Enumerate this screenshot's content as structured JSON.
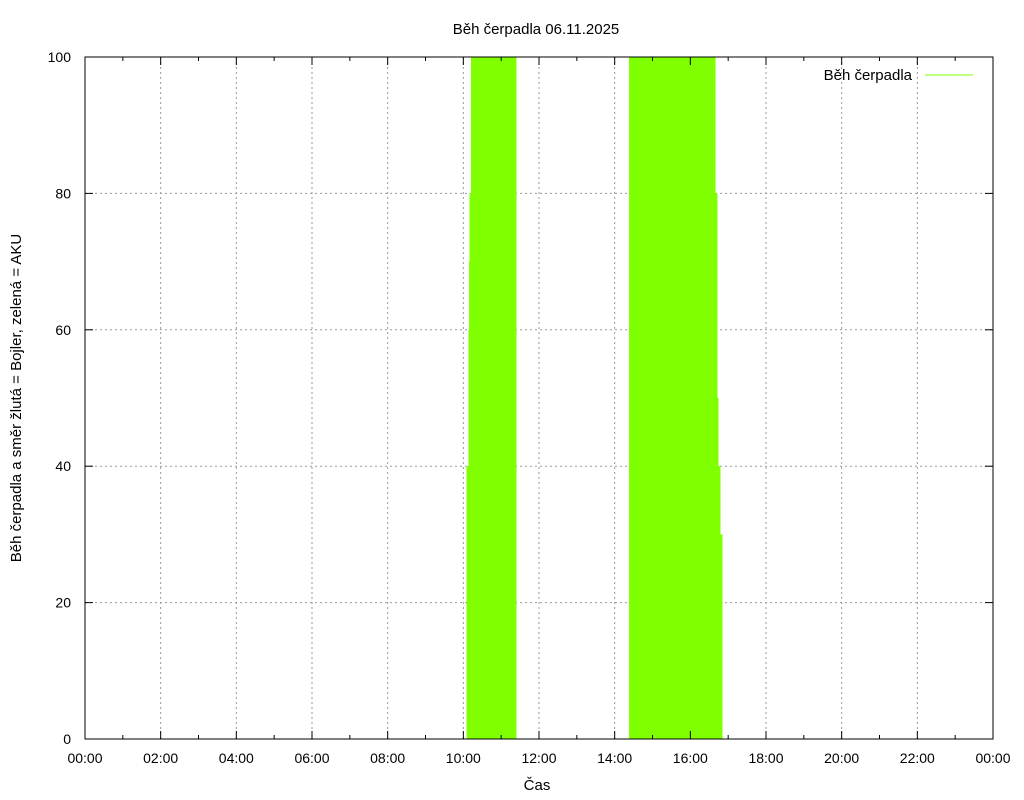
{
  "chart_data": {
    "type": "area",
    "title": "Běh čerpadla 06.11.2025",
    "xlabel": "Čas",
    "ylabel": "Běh čerpadla a směr žlutá = Bojler, zelená = AKU",
    "xlim": [
      0,
      1440
    ],
    "ylim": [
      0,
      100
    ],
    "grid": true,
    "legend_position": "top-right",
    "x_tick_labels": [
      "00:00",
      "02:00",
      "04:00",
      "06:00",
      "08:00",
      "10:00",
      "12:00",
      "14:00",
      "16:00",
      "18:00",
      "20:00",
      "22:00",
      "00:00"
    ],
    "y_tick_labels": [
      "0",
      "20",
      "40",
      "60",
      "80",
      "100"
    ],
    "series": [
      {
        "name": "Běh čerpadla",
        "color": "#80ff00",
        "x_units": "minutes since 00:00",
        "blocks": [
          {
            "start": 605,
            "end": 608,
            "value": 40
          },
          {
            "start": 608,
            "end": 609,
            "value": 60
          },
          {
            "start": 609,
            "end": 610,
            "value": 70
          },
          {
            "start": 610,
            "end": 612,
            "value": 80
          },
          {
            "start": 612,
            "end": 684,
            "value": 100
          },
          {
            "start": 863,
            "end": 1000,
            "value": 100
          },
          {
            "start": 1000,
            "end": 1003,
            "value": 80
          },
          {
            "start": 1003,
            "end": 1005,
            "value": 50
          },
          {
            "start": 1005,
            "end": 1008,
            "value": 40
          },
          {
            "start": 1008,
            "end": 1011,
            "value": 30
          }
        ]
      }
    ]
  }
}
